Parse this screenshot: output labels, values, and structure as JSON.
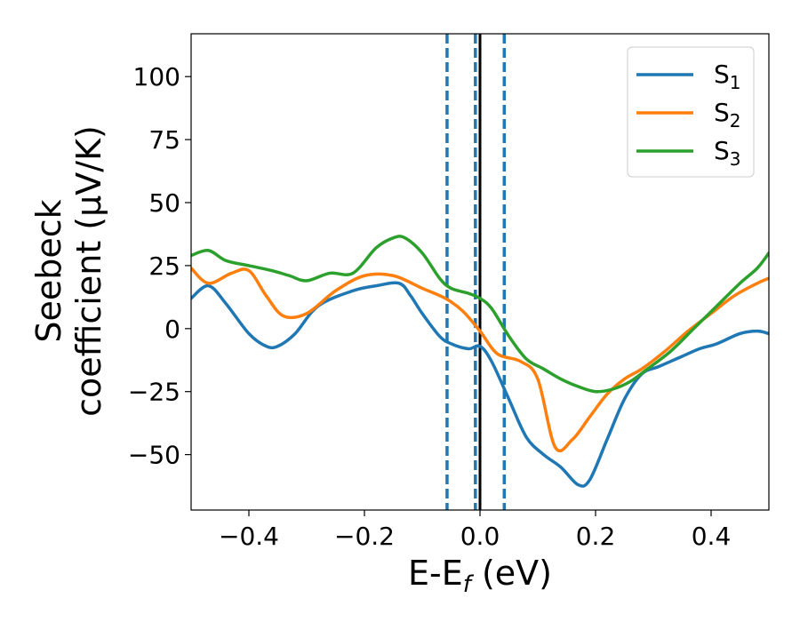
{
  "chart_data": {
    "type": "line",
    "xlabel_main": "E-E",
    "xlabel_sub": "f",
    "xlabel_unit": " (eV)",
    "ylabel_line1": "Seebeck",
    "ylabel_line2": "coefficient  (μV/K)",
    "xlim": [
      -0.5,
      0.5
    ],
    "ylim": [
      -72,
      117
    ],
    "xticks": [
      {
        "value": -0.4,
        "label": "−0.4"
      },
      {
        "value": -0.2,
        "label": "−0.2"
      },
      {
        "value": 0.0,
        "label": "0.0"
      },
      {
        "value": 0.2,
        "label": "0.2"
      },
      {
        "value": 0.4,
        "label": "0.4"
      }
    ],
    "yticks": [
      {
        "value": -50,
        "label": "−50"
      },
      {
        "value": -25,
        "label": "−25"
      },
      {
        "value": 0,
        "label": "0"
      },
      {
        "value": 25,
        "label": "25"
      },
      {
        "value": 50,
        "label": "50"
      },
      {
        "value": 75,
        "label": "75"
      },
      {
        "value": 100,
        "label": "100"
      }
    ],
    "vlines": [
      {
        "x": -0.057,
        "style": "dashed",
        "color": "#1f77b4"
      },
      {
        "x": -0.008,
        "style": "dashed",
        "color": "#1f77b4"
      },
      {
        "x": 0.0,
        "style": "solid",
        "color": "#000000"
      },
      {
        "x": 0.042,
        "style": "dashed",
        "color": "#1f77b4"
      }
    ],
    "legend_position": "top-right",
    "series": [
      {
        "name": "S",
        "subscript": "1",
        "color": "#1f77b4",
        "x": [
          -0.5,
          -0.47,
          -0.44,
          -0.4,
          -0.37,
          -0.35,
          -0.32,
          -0.28,
          -0.22,
          -0.18,
          -0.14,
          -0.12,
          -0.1,
          -0.07,
          -0.05,
          -0.02,
          0.0,
          0.02,
          0.05,
          0.08,
          0.11,
          0.14,
          0.17,
          0.19,
          0.22,
          0.25,
          0.28,
          0.31,
          0.35,
          0.38,
          0.41,
          0.45,
          0.48,
          0.5
        ],
        "values": [
          12,
          17,
          10,
          -2,
          -7,
          -7,
          -2,
          9,
          15,
          17,
          18,
          13,
          6,
          -3,
          -6,
          -8,
          -7,
          -13,
          -28,
          -43,
          -50,
          -55,
          -62,
          -60,
          -44,
          -28,
          -18,
          -15,
          -11,
          -8,
          -6,
          -2,
          -1,
          -2
        ]
      },
      {
        "name": "S",
        "subscript": "2",
        "color": "#ff7f0e",
        "x": [
          -0.5,
          -0.47,
          -0.43,
          -0.4,
          -0.37,
          -0.34,
          -0.3,
          -0.25,
          -0.2,
          -0.15,
          -0.1,
          -0.06,
          -0.03,
          0.0,
          0.03,
          0.07,
          0.1,
          0.13,
          0.16,
          0.19,
          0.22,
          0.25,
          0.28,
          0.32,
          0.36,
          0.4,
          0.44,
          0.48,
          0.5
        ],
        "values": [
          24,
          18,
          22,
          23,
          13,
          5,
          6,
          15,
          21,
          21,
          16,
          12,
          7,
          -1,
          -10,
          -13,
          -20,
          -47,
          -44,
          -35,
          -26,
          -20,
          -16,
          -9,
          -1,
          6,
          13,
          18,
          20
        ]
      },
      {
        "name": "S",
        "subscript": "3",
        "color": "#2ca02c",
        "x": [
          -0.5,
          -0.47,
          -0.44,
          -0.4,
          -0.36,
          -0.33,
          -0.3,
          -0.26,
          -0.22,
          -0.18,
          -0.15,
          -0.13,
          -0.1,
          -0.07,
          -0.05,
          -0.02,
          0.0,
          0.02,
          0.05,
          0.08,
          0.11,
          0.14,
          0.17,
          0.2,
          0.23,
          0.26,
          0.29,
          0.33,
          0.37,
          0.41,
          0.45,
          0.48,
          0.5
        ],
        "values": [
          29,
          31,
          27,
          25,
          23,
          21,
          19,
          22,
          22,
          32,
          36,
          36,
          30,
          20,
          16,
          14,
          12,
          8,
          -3,
          -12,
          -16,
          -20,
          -23,
          -25,
          -24,
          -21,
          -16,
          -9,
          0,
          9,
          18,
          24,
          30
        ]
      }
    ]
  }
}
